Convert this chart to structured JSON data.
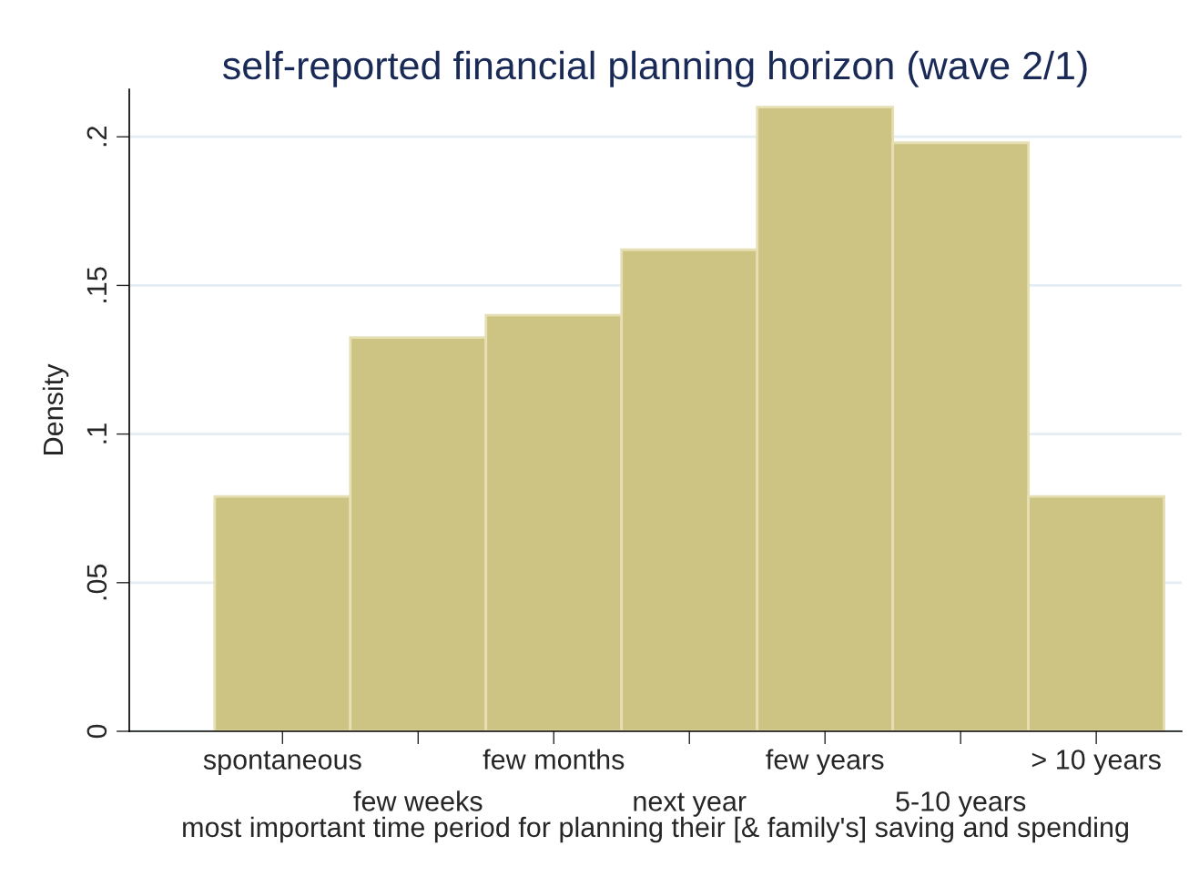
{
  "chart_data": {
    "type": "bar",
    "title": "self-reported financial planning horizon (wave 2/1)",
    "xlabel": "most important time period for planning their [& family's] saving and spending",
    "ylabel": "Density",
    "categories": [
      "spontaneous",
      "few weeks",
      "few months",
      "next year",
      "few years",
      "5-10 years",
      "> 10 years"
    ],
    "values": [
      0.079,
      0.1325,
      0.14,
      0.162,
      0.21,
      0.198,
      0.079
    ],
    "color": "#cdc383",
    "ylim": [
      0,
      0.216
    ],
    "yticks": [
      {
        "value": 0,
        "label": "0"
      },
      {
        "value": 0.05,
        "label": ".05"
      },
      {
        "value": 0.1,
        "label": ".1"
      },
      {
        "value": 0.15,
        "label": ".15"
      },
      {
        "value": 0.2,
        "label": ".2"
      }
    ],
    "grid": "y"
  }
}
